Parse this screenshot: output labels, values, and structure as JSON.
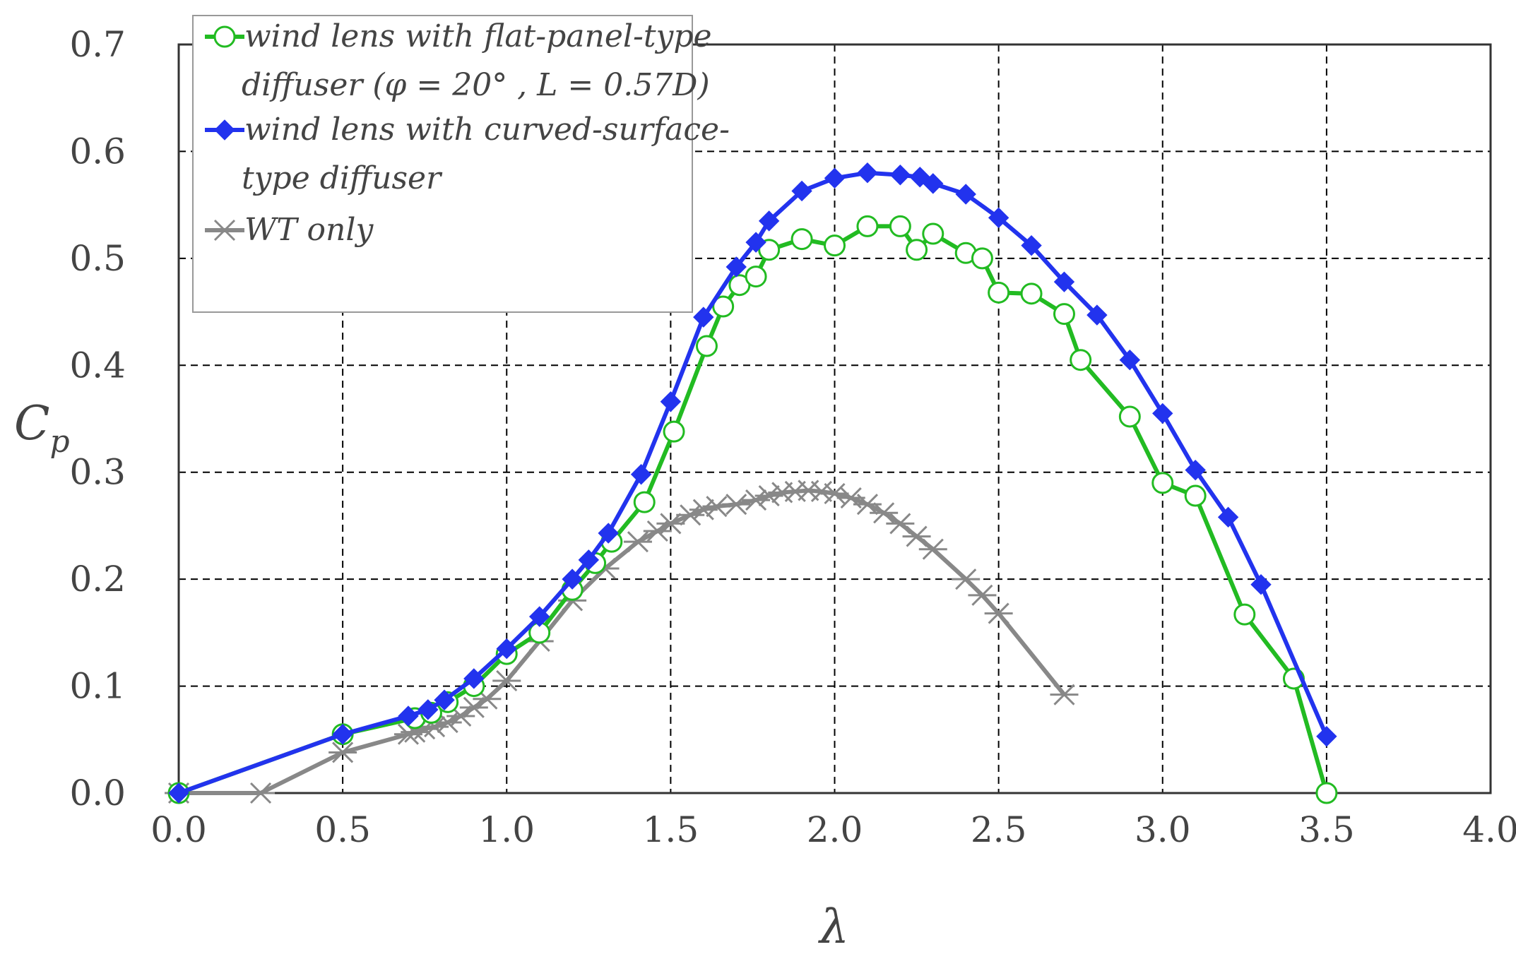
{
  "chart_data": {
    "type": "line",
    "xlabel": "λ",
    "ylabel": "C",
    "ylabel_subscript": "p",
    "xlim": [
      0.0,
      4.0
    ],
    "ylim": [
      0.0,
      0.7
    ],
    "xticks": [
      "0.0",
      "0.5",
      "1.0",
      "1.5",
      "2.0",
      "2.5",
      "3.0",
      "3.5",
      "4.0"
    ],
    "yticks": [
      "0.0",
      "0.1",
      "0.2",
      "0.3",
      "0.4",
      "0.5",
      "0.6",
      "0.7"
    ],
    "grid": true,
    "legend_position": "top-left",
    "series": [
      {
        "name": "wind lens with flat-panel-type diffuser (φ = 20° , L = 0.57D)",
        "legend_lines": [
          "wind lens with flat-panel-type",
          "diffuser (φ = 20° , L = 0.57D)"
        ],
        "color": "#22bb22",
        "marker": "open-circle",
        "x": [
          0.0,
          0.5,
          0.72,
          0.77,
          0.82,
          0.9,
          1.0,
          1.1,
          1.2,
          1.27,
          1.32,
          1.42,
          1.51,
          1.61,
          1.66,
          1.71,
          1.76,
          1.8,
          1.9,
          2.0,
          2.1,
          2.2,
          2.25,
          2.3,
          2.4,
          2.45,
          2.5,
          2.6,
          2.7,
          2.75,
          2.9,
          3.0,
          3.1,
          3.25,
          3.4,
          3.5
        ],
        "y": [
          0.0,
          0.055,
          0.07,
          0.075,
          0.085,
          0.1,
          0.13,
          0.15,
          0.19,
          0.215,
          0.235,
          0.272,
          0.338,
          0.418,
          0.455,
          0.475,
          0.483,
          0.508,
          0.518,
          0.512,
          0.53,
          0.53,
          0.508,
          0.523,
          0.505,
          0.5,
          0.468,
          0.467,
          0.448,
          0.405,
          0.352,
          0.29,
          0.278,
          0.167,
          0.107,
          0.0
        ]
      },
      {
        "name": "wind lens with curved-surface-type diffuser",
        "legend_lines": [
          "wind lens with curved-surface-",
          "type diffuser"
        ],
        "color": "#2233ee",
        "marker": "filled-diamond",
        "x": [
          0.0,
          0.5,
          0.7,
          0.76,
          0.81,
          0.9,
          1.0,
          1.1,
          1.2,
          1.25,
          1.31,
          1.41,
          1.5,
          1.6,
          1.7,
          1.76,
          1.8,
          1.9,
          2.0,
          2.1,
          2.2,
          2.26,
          2.3,
          2.4,
          2.5,
          2.6,
          2.7,
          2.8,
          2.9,
          3.0,
          3.1,
          3.2,
          3.3,
          3.5
        ],
        "y": [
          0.0,
          0.055,
          0.072,
          0.078,
          0.087,
          0.107,
          0.135,
          0.165,
          0.2,
          0.218,
          0.243,
          0.298,
          0.366,
          0.445,
          0.492,
          0.515,
          0.535,
          0.563,
          0.575,
          0.58,
          0.578,
          0.576,
          0.57,
          0.56,
          0.538,
          0.512,
          0.478,
          0.447,
          0.405,
          0.355,
          0.302,
          0.258,
          0.195,
          0.053
        ]
      },
      {
        "name": "WT only",
        "legend_lines": [
          "WT only"
        ],
        "color": "#888888",
        "marker": "asterisk",
        "x": [
          0.0,
          0.25,
          0.5,
          0.7,
          0.72,
          0.75,
          0.78,
          0.82,
          0.86,
          0.9,
          0.94,
          1.0,
          1.1,
          1.2,
          1.3,
          1.4,
          1.46,
          1.5,
          1.56,
          1.6,
          1.64,
          1.7,
          1.76,
          1.8,
          1.84,
          1.88,
          1.92,
          1.96,
          2.0,
          2.05,
          2.1,
          2.15,
          2.2,
          2.25,
          2.3,
          2.4,
          2.45,
          2.5,
          2.7
        ],
        "y": [
          0.0,
          0.0,
          0.038,
          0.055,
          0.057,
          0.06,
          0.062,
          0.066,
          0.072,
          0.08,
          0.088,
          0.105,
          0.142,
          0.18,
          0.21,
          0.235,
          0.245,
          0.252,
          0.26,
          0.265,
          0.268,
          0.27,
          0.274,
          0.278,
          0.281,
          0.282,
          0.283,
          0.282,
          0.28,
          0.276,
          0.27,
          0.262,
          0.252,
          0.24,
          0.228,
          0.2,
          0.185,
          0.168,
          0.092
        ]
      }
    ]
  }
}
